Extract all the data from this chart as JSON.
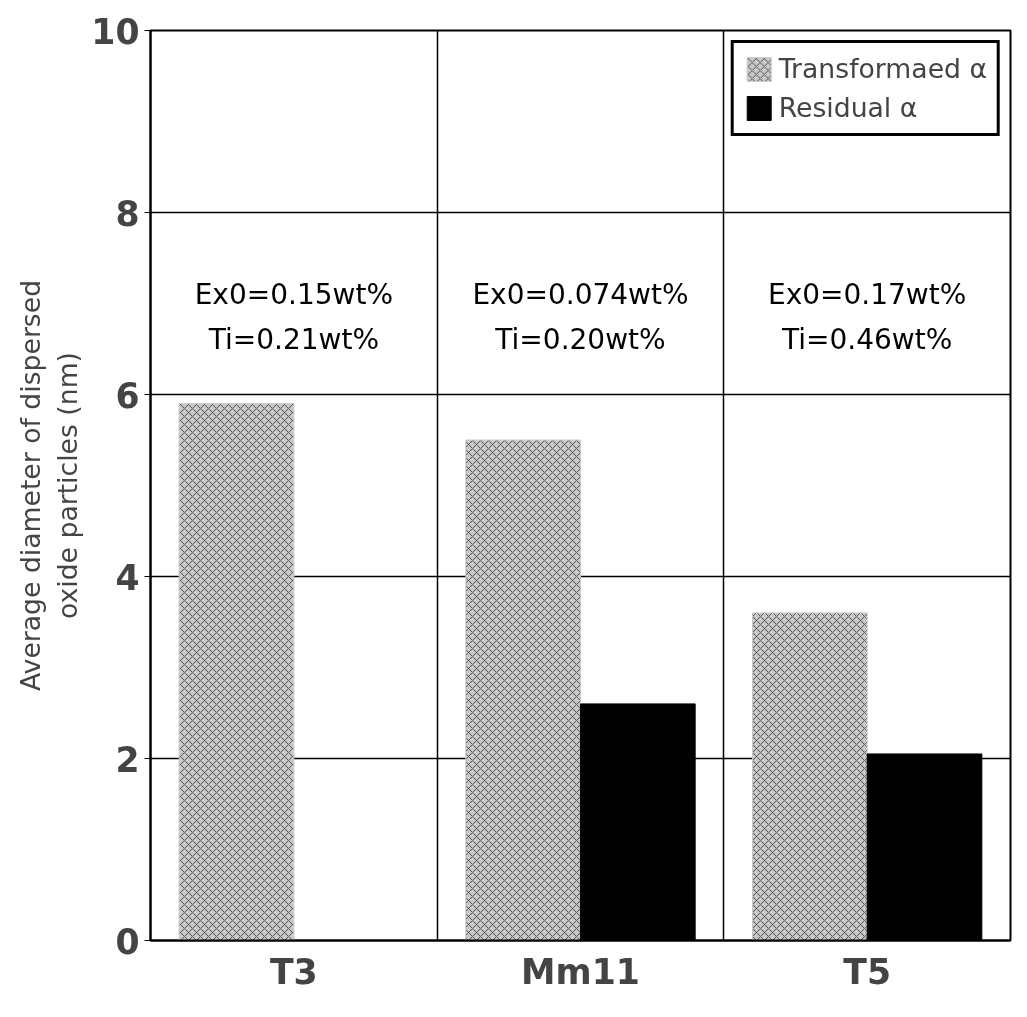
{
  "chart_data": {
    "type": "bar",
    "ylabel": "Average diameter of dispersed\noxide particles (nm)",
    "categories": [
      "T3",
      "Mm11",
      "T5"
    ],
    "series": [
      {
        "name": "Transformaed α",
        "color": "#c8c8c8",
        "values": [
          5.9,
          5.5,
          3.6
        ]
      },
      {
        "name": "Residual α",
        "color": "#000000",
        "values": [
          null,
          2.6,
          2.05
        ]
      }
    ],
    "ylim": [
      0,
      10
    ],
    "yticks": [
      0,
      2,
      4,
      6,
      8,
      10
    ],
    "grid": true,
    "legend": "top right",
    "annotations": [
      "Ex0=0.15wt%",
      "Ti=0.21wt%",
      "Ex0=0.074wt%",
      "Ti=0.20wt%",
      "Ex0=0.17wt%",
      "Ti=0.46wt%"
    ]
  }
}
